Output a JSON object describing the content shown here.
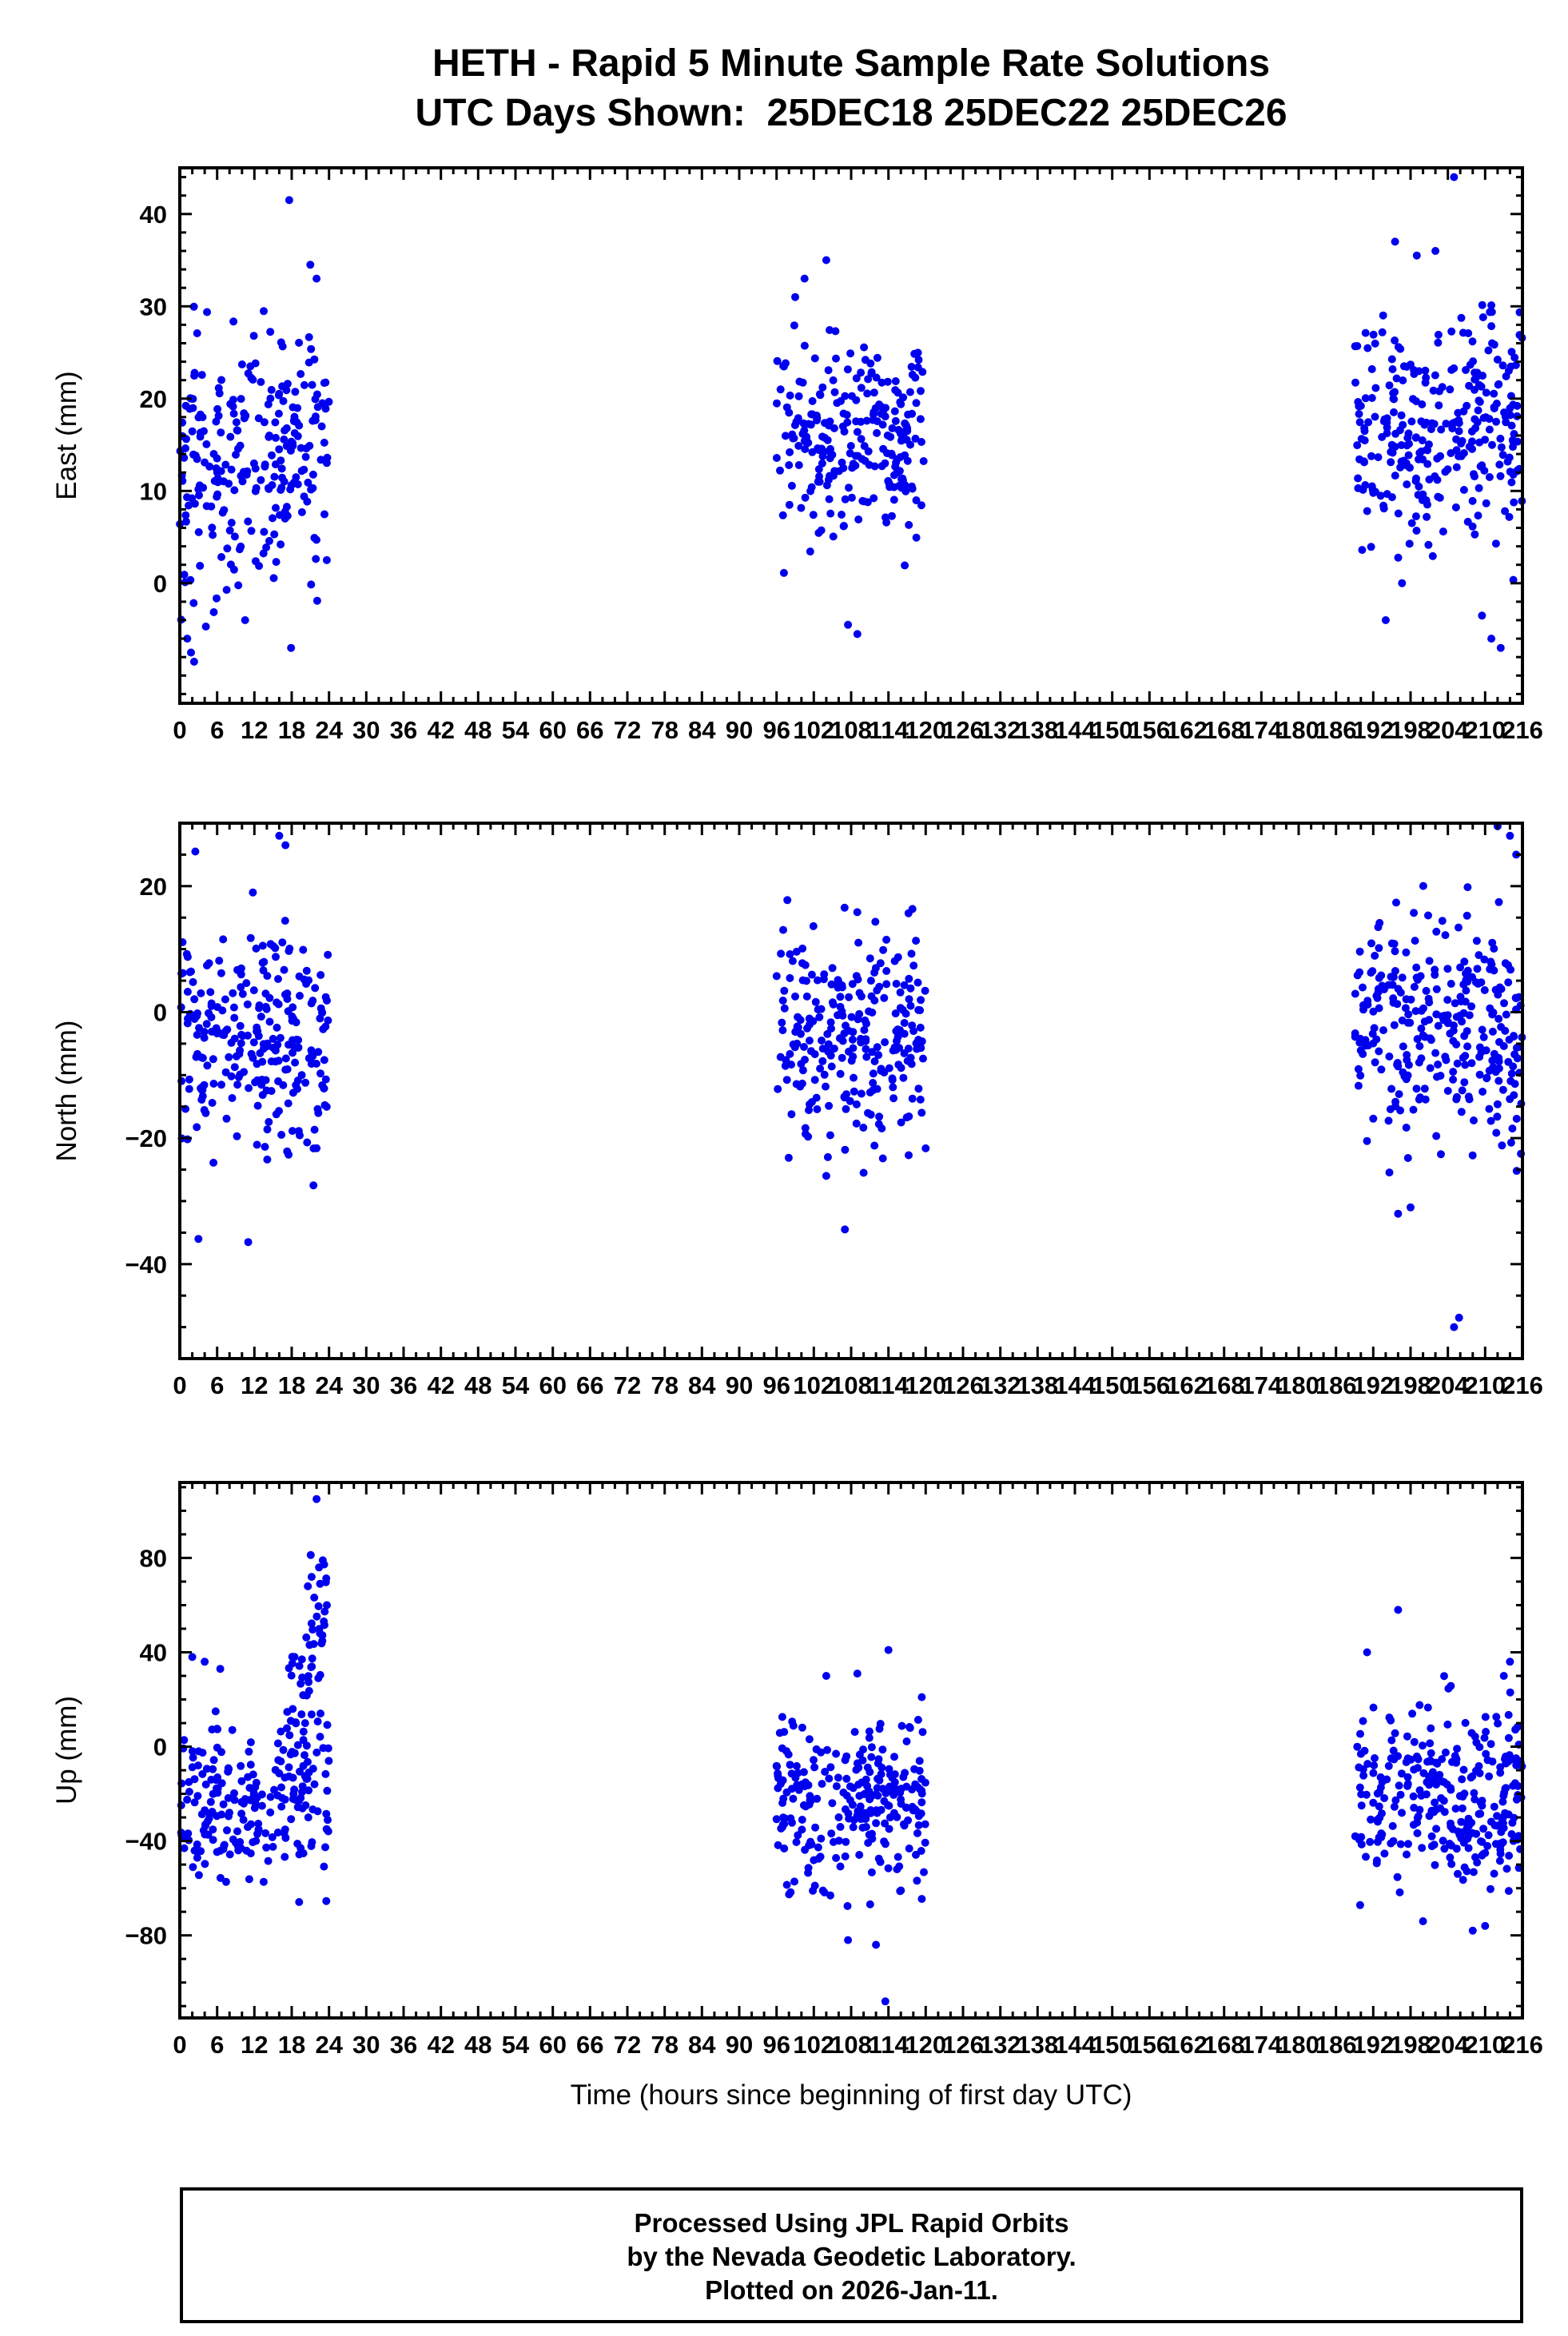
{
  "chart_data": {
    "type": "scatter",
    "title": "HETH - Rapid 5 Minute Sample Rate Solutions",
    "subtitle": "UTC Days Shown:  25DEC18 25DEC22 25DEC26",
    "xlabel": "Time (hours since beginning of first day UTC)",
    "station": "HETH",
    "utc_days": [
      "25DEC18",
      "25DEC22",
      "25DEC26"
    ],
    "point_color": "#0000ee",
    "seed": 20261,
    "x": {
      "min": 0,
      "max": 216,
      "major_tick": 6,
      "minor_tick": 2,
      "tick_labels": [
        0,
        6,
        12,
        18,
        24,
        30,
        36,
        42,
        48,
        54,
        60,
        66,
        72,
        78,
        84,
        90,
        96,
        102,
        108,
        114,
        120,
        126,
        132,
        138,
        144,
        150,
        156,
        162,
        168,
        174,
        180,
        186,
        192,
        198,
        204,
        210,
        216
      ]
    },
    "panels": [
      {
        "id": "east",
        "ylabel": "East (mm)",
        "ymin": -13,
        "ymax": 45,
        "yticks": [
          0,
          10,
          20,
          30,
          40
        ],
        "yminor": 2,
        "clusters": [
          {
            "x0": 0,
            "x1": 24,
            "n": 250,
            "mean": 14,
            "sd": 7,
            "clip": [
              -8,
              31
            ]
          },
          {
            "x0": 96,
            "x1": 120,
            "n": 250,
            "mean": 16,
            "sd": 5.5,
            "clip": [
              -2,
              30
            ]
          },
          {
            "x0": 189,
            "x1": 216,
            "n": 290,
            "mean": 16,
            "sd": 6.5,
            "clip": [
              -2,
              31
            ]
          }
        ],
        "outliers": [
          [
            17.6,
            41.5
          ],
          [
            21,
            34.5
          ],
          [
            22,
            33
          ],
          [
            1.2,
            -6
          ],
          [
            1.8,
            -7.5
          ],
          [
            2.3,
            -8.5
          ],
          [
            17.9,
            -7
          ],
          [
            10.5,
            -4
          ],
          [
            104,
            35
          ],
          [
            100.5,
            33
          ],
          [
            99,
            31
          ],
          [
            107.5,
            -4.5
          ],
          [
            109,
            -5.5
          ],
          [
            205,
            44
          ],
          [
            195.5,
            37
          ],
          [
            199,
            35.5
          ],
          [
            202,
            36
          ],
          [
            209.5,
            -3.5
          ],
          [
            211,
            -6
          ],
          [
            212.5,
            -7
          ],
          [
            194,
            -4
          ]
        ]
      },
      {
        "id": "north",
        "ylabel": "North (mm)",
        "ymin": -55,
        "ymax": 30,
        "yticks": [
          -40,
          -20,
          0,
          20
        ],
        "yminor": 5,
        "clusters": [
          {
            "x0": 0,
            "x1": 24,
            "n": 250,
            "mean": -4,
            "sd": 9,
            "clip": [
              -27,
              22
            ]
          },
          {
            "x0": 96,
            "x1": 120,
            "n": 250,
            "mean": -3,
            "sd": 8.5,
            "clip": [
              -24,
              20
            ]
          },
          {
            "x0": 189,
            "x1": 216,
            "n": 290,
            "mean": -2,
            "sd": 9.5,
            "clip": [
              -30,
              22
            ]
          }
        ],
        "outliers": [
          [
            2.5,
            25.5
          ],
          [
            16,
            28
          ],
          [
            17,
            26.5
          ],
          [
            3,
            -36
          ],
          [
            11,
            -36.5
          ],
          [
            21.5,
            -27.5
          ],
          [
            107,
            -34.5
          ],
          [
            104,
            -26
          ],
          [
            110,
            -25.5
          ],
          [
            212,
            29.5
          ],
          [
            214,
            28
          ],
          [
            205,
            -50
          ],
          [
            205.8,
            -48.5
          ],
          [
            196,
            -32
          ],
          [
            198,
            -31
          ],
          [
            215,
            25
          ]
        ]
      },
      {
        "id": "up",
        "ylabel": "Up (mm)",
        "ymin": -115,
        "ymax": 112,
        "yticks": [
          -80,
          -40,
          0,
          40,
          80
        ],
        "yminor": 10,
        "clusters": [
          {
            "x0": 0,
            "x1": 24,
            "n": 215,
            "mean": -25,
            "sd": 17,
            "clip": [
              -74,
              18
            ]
          },
          {
            "x0": 17,
            "x1": 24,
            "n": 50,
            "sd": 14,
            "clip": [
              -25,
              85
            ],
            "trend": [
              5,
              70
            ]
          },
          {
            "x0": 96,
            "x1": 120,
            "n": 255,
            "mean": -25,
            "sd": 19,
            "clip": [
              -68,
              25
            ]
          },
          {
            "x0": 189,
            "x1": 216,
            "n": 285,
            "mean": -22,
            "sd": 19,
            "clip": [
              -70,
              30
            ]
          }
        ],
        "outliers": [
          [
            22,
            105
          ],
          [
            23,
            79
          ],
          [
            22.4,
            76
          ],
          [
            21.2,
            72
          ],
          [
            20.6,
            68
          ],
          [
            2,
            38
          ],
          [
            4,
            36
          ],
          [
            6.5,
            33
          ],
          [
            113.5,
            -108
          ],
          [
            112,
            -84
          ],
          [
            107.5,
            -82
          ],
          [
            114,
            41
          ],
          [
            104,
            30
          ],
          [
            109,
            31
          ],
          [
            196,
            58
          ],
          [
            191,
            40
          ],
          [
            214,
            36
          ],
          [
            213,
            30
          ],
          [
            200,
            -74
          ],
          [
            208,
            -78
          ],
          [
            210,
            -76
          ]
        ]
      }
    ]
  },
  "footer": {
    "lines": [
      "Processed Using JPL Rapid Orbits",
      "by the Nevada Geodetic Laboratory.",
      "Plotted on 2026-Jan-11."
    ]
  }
}
